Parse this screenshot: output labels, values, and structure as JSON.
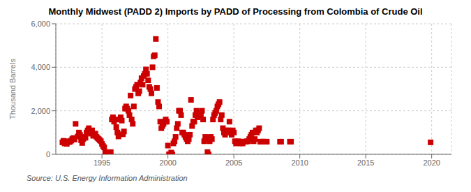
{
  "chart_data": {
    "type": "scatter",
    "title": "Monthly Midwest (PADD 2) Imports by PADD of Processing from Colombia of Crude Oil",
    "ylabel": "Thousand Barrels",
    "source": "Source: U.S. Energy Information Administration",
    "color": "#cc0000",
    "marker": "square",
    "grid": true,
    "xlim": [
      1991.5,
      2021.5
    ],
    "ylim": [
      0,
      6000
    ],
    "xticks": [
      1995,
      2000,
      2005,
      2010,
      2015,
      2020
    ],
    "yticks": [
      0,
      {
        "value": 2000,
        "label": "2,000"
      },
      {
        "value": 4000,
        "label": "4,000"
      },
      {
        "value": 6000,
        "label": "6,000"
      }
    ],
    "x": [
      1992.0,
      1992.083,
      1992.167,
      1992.25,
      1992.333,
      1992.5,
      1992.583,
      1992.667,
      1992.75,
      1992.833,
      1992.917,
      1993.0,
      1993.167,
      1993.25,
      1993.333,
      1993.417,
      1993.5,
      1993.583,
      1993.667,
      1993.75,
      1993.833,
      1993.917,
      1994.0,
      1994.083,
      1994.167,
      1994.25,
      1994.333,
      1994.5,
      1994.583,
      1994.667,
      1994.75,
      1994.833,
      1994.917,
      1995.0,
      1995.083,
      1995.167,
      1995.25,
      1995.333,
      1995.417,
      1995.5,
      1995.583,
      1995.667,
      1995.75,
      1995.833,
      1995.917,
      1996.0,
      1996.083,
      1996.167,
      1996.25,
      1996.333,
      1996.417,
      1996.5,
      1996.583,
      1996.667,
      1996.75,
      1996.833,
      1996.917,
      1997.0,
      1997.083,
      1997.167,
      1997.25,
      1997.333,
      1997.417,
      1997.5,
      1997.583,
      1997.667,
      1997.75,
      1997.833,
      1997.917,
      1998.0,
      1998.083,
      1998.167,
      1998.25,
      1998.333,
      1998.417,
      1998.5,
      1998.583,
      1998.667,
      1998.75,
      1998.833,
      1998.917,
      1999.0,
      1999.083,
      1999.167,
      1999.25,
      1999.333,
      1999.417,
      1999.5,
      1999.583,
      1999.667,
      1999.75,
      1999.833,
      1999.917,
      2000.0,
      2000.083,
      2000.167,
      2000.25,
      2000.333,
      2000.417,
      2000.5,
      2000.583,
      2000.667,
      2000.75,
      2000.833,
      2000.917,
      2001.0,
      2001.083,
      2001.167,
      2001.25,
      2001.333,
      2001.417,
      2001.5,
      2001.583,
      2001.667,
      2001.75,
      2001.833,
      2001.917,
      2002.0,
      2002.083,
      2002.167,
      2002.25,
      2002.333,
      2002.417,
      2002.5,
      2002.583,
      2002.667,
      2002.75,
      2002.833,
      2002.917,
      2003.0,
      2003.083,
      2003.167,
      2003.25,
      2003.333,
      2003.417,
      2003.5,
      2003.583,
      2003.667,
      2003.75,
      2003.833,
      2003.917,
      2004.0,
      2004.083,
      2004.167,
      2004.25,
      2004.333,
      2004.417,
      2004.5,
      2004.583,
      2004.667,
      2004.75,
      2004.833,
      2004.917,
      2005.0,
      2005.083,
      2005.167,
      2005.25,
      2005.333,
      2005.417,
      2005.5,
      2005.583,
      2005.667,
      2005.75,
      2005.833,
      2005.917,
      2006.0,
      2006.083,
      2006.167,
      2006.25,
      2006.333,
      2006.417,
      2006.5,
      2006.583,
      2006.667,
      2006.75,
      2006.833,
      2006.917,
      2007.0,
      2007.083,
      2007.167,
      2007.25,
      2007.333,
      2007.417,
      2007.5,
      2008.5,
      2008.583,
      2009.25,
      2009.333,
      2019.917
    ],
    "values": [
      550,
      620,
      500,
      600,
      480,
      560,
      580,
      630,
      700,
      750,
      680,
      1400,
      820,
      1000,
      900,
      650,
      520,
      700,
      800,
      760,
      1000,
      1100,
      1200,
      1050,
      950,
      1100,
      850,
      950,
      800,
      750,
      700,
      650,
      600,
      480,
      380,
      320,
      100,
      50,
      80,
      0,
      0,
      100,
      1600,
      1700,
      1500,
      1600,
      1250,
      1000,
      820,
      1600,
      1700,
      1550,
      920,
      1050,
      2100,
      2200,
      2100,
      2000,
      1800,
      2700,
      1600,
      1400,
      2200,
      3000,
      3100,
      3200,
      2800,
      2900,
      3300,
      3500,
      3200,
      3600,
      3700,
      3900,
      3700,
      3400,
      3100,
      3000,
      2800,
      4000,
      4500,
      4550,
      5300,
      3050,
      2400,
      2200,
      1500,
      1200,
      1300,
      1400,
      1500,
      1600,
      1500,
      400,
      0,
      0,
      80,
      0,
      500,
      600,
      800,
      1200,
      1400,
      2000,
      2000,
      1800,
      1000,
      1000,
      900,
      800,
      700,
      600,
      700,
      900,
      2500,
      1300,
      1500,
      1500,
      1800,
      2000,
      1700,
      1800,
      1900,
      1800,
      2000,
      1600,
      600,
      800,
      700,
      100,
      0,
      600,
      800,
      700,
      1600,
      1800,
      1900,
      2000,
      2200,
      2300,
      2400,
      1600,
      1800,
      1200,
      1000,
      900,
      1100,
      1000,
      1100,
      1500,
      1000,
      900,
      1100,
      1000,
      600,
      500,
      580,
      600,
      580,
      500,
      580,
      500,
      580,
      580,
      580,
      600,
      600,
      700,
      800,
      900,
      1000,
      600,
      700,
      1100,
      1000,
      1100,
      1200,
      580,
      580,
      580,
      580,
      580,
      580,
      580,
      580,
      580,
      580,
      580,
      550
    ]
  }
}
